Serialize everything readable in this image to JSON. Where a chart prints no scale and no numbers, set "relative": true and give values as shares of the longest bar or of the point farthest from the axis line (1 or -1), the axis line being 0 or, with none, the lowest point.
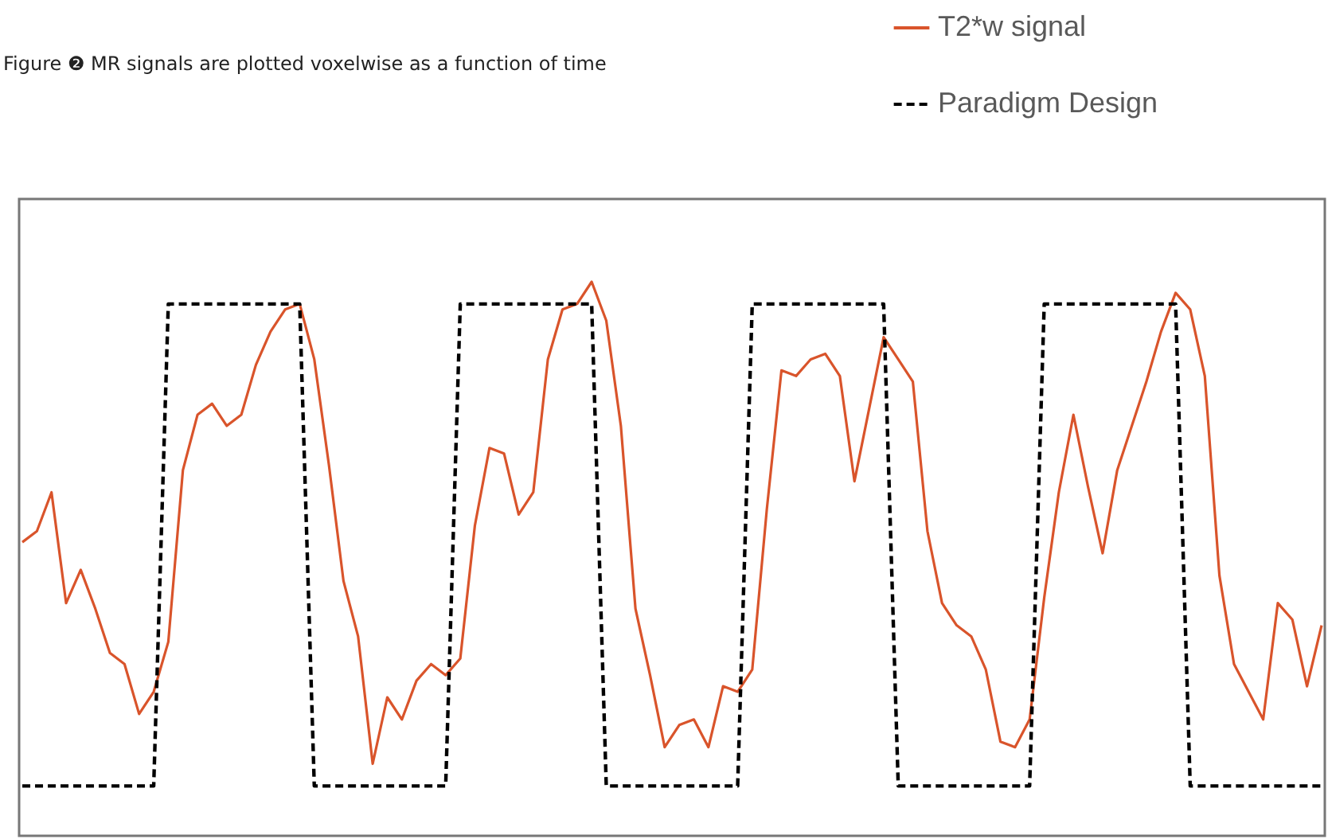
{
  "chart_data": {
    "type": "line",
    "title": "Figure ❷ MR signals are plotted voxelwise as a function of time",
    "relative": true,
    "legend": "top right",
    "categories": [
      null,
      null,
      null,
      null,
      null,
      null,
      null,
      null,
      null,
      null,
      null,
      null,
      null,
      null,
      null,
      null,
      null,
      null,
      null,
      null,
      null,
      null,
      null,
      null,
      null,
      null,
      null,
      null,
      null,
      null,
      null,
      null,
      null,
      null,
      null,
      null,
      null,
      null,
      null,
      null,
      null,
      null,
      null,
      null,
      null,
      null,
      null,
      null,
      null,
      null,
      null,
      null,
      null,
      null,
      null,
      null,
      null,
      null,
      null,
      null,
      null,
      null,
      null,
      null,
      null,
      null,
      null,
      null,
      null,
      null,
      null,
      null,
      null,
      null,
      null,
      null,
      null,
      null,
      null,
      null,
      null,
      null,
      null,
      null,
      null,
      null,
      null,
      null,
      null,
      null
    ],
    "series": [
      {
        "name": "T2*w signal",
        "type": "line",
        "color": "#d9542b",
        "line_style": "solid",
        "values": [
          0.53,
          0.55,
          0.62,
          0.42,
          0.48,
          0.41,
          0.33,
          0.31,
          0.22,
          0.26,
          0.35,
          0.66,
          0.76,
          0.78,
          0.74,
          0.76,
          0.85,
          0.91,
          0.95,
          0.96,
          0.86,
          0.67,
          0.46,
          0.36,
          0.13,
          0.25,
          0.21,
          0.28,
          0.31,
          0.29,
          0.32,
          0.56,
          0.7,
          0.69,
          0.58,
          0.62,
          0.86,
          0.95,
          0.96,
          1.0,
          0.93,
          0.74,
          0.41,
          0.29,
          0.16,
          0.2,
          0.21,
          0.16,
          0.27,
          0.26,
          0.3,
          0.59,
          0.84,
          0.83,
          0.86,
          0.87,
          0.83,
          0.64,
          0.77,
          0.9,
          0.86,
          0.82,
          0.55,
          0.42,
          0.38,
          0.36,
          0.3,
          0.17,
          0.16,
          0.21,
          0.43,
          0.62,
          0.76,
          0.63,
          0.51,
          0.66,
          0.74,
          0.82,
          0.91,
          0.98,
          0.95,
          0.83,
          0.47,
          0.31,
          0.26,
          0.21,
          0.42,
          0.39,
          0.27,
          0.38
        ]
      },
      {
        "name": "Paradigm Design",
        "type": "line",
        "color": "#000000",
        "line_style": "dashed",
        "values": [
          0.09,
          0.09,
          0.09,
          0.09,
          0.09,
          0.09,
          0.09,
          0.09,
          0.09,
          0.09,
          0.96,
          0.96,
          0.96,
          0.96,
          0.96,
          0.96,
          0.96,
          0.96,
          0.96,
          0.96,
          0.09,
          0.09,
          0.09,
          0.09,
          0.09,
          0.09,
          0.09,
          0.09,
          0.09,
          0.09,
          0.96,
          0.96,
          0.96,
          0.96,
          0.96,
          0.96,
          0.96,
          0.96,
          0.96,
          0.96,
          0.09,
          0.09,
          0.09,
          0.09,
          0.09,
          0.09,
          0.09,
          0.09,
          0.09,
          0.09,
          0.96,
          0.96,
          0.96,
          0.96,
          0.96,
          0.96,
          0.96,
          0.96,
          0.96,
          0.96,
          0.09,
          0.09,
          0.09,
          0.09,
          0.09,
          0.09,
          0.09,
          0.09,
          0.09,
          0.09,
          0.96,
          0.96,
          0.96,
          0.96,
          0.96,
          0.96,
          0.96,
          0.96,
          0.96,
          0.96,
          0.09,
          0.09,
          0.09,
          0.09,
          0.09,
          0.09,
          0.09,
          0.09,
          0.09,
          0.09
        ]
      }
    ]
  }
}
